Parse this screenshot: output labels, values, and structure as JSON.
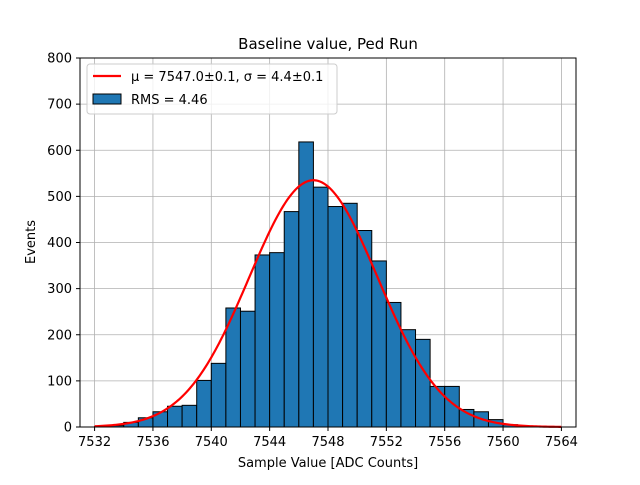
{
  "chart_data": {
    "type": "bar",
    "title": "Baseline value, Ped Run",
    "xlabel": "Sample Value [ADC Counts]",
    "ylabel": "Events",
    "xlim": [
      7531.0,
      7565.0
    ],
    "ylim": [
      0,
      800
    ],
    "xticks": [
      7532,
      7536,
      7540,
      7544,
      7548,
      7552,
      7556,
      7560,
      7564
    ],
    "yticks": [
      0,
      100,
      200,
      300,
      400,
      500,
      600,
      700,
      800
    ],
    "grid": true,
    "legend_position": "top-left",
    "histogram": {
      "name": "RMS = 4.46",
      "color": "#1f77b4",
      "edge_color": "#000000",
      "bins": [
        {
          "x0": 7532.0,
          "x1": 7533.0,
          "count": 1
        },
        {
          "x0": 7533.0,
          "x1": 7534.0,
          "count": 3
        },
        {
          "x0": 7534.0,
          "x1": 7535.0,
          "count": 10
        },
        {
          "x0": 7535.0,
          "x1": 7536.0,
          "count": 20
        },
        {
          "x0": 7536.0,
          "x1": 7537.0,
          "count": 33
        },
        {
          "x0": 7537.0,
          "x1": 7538.0,
          "count": 45
        },
        {
          "x0": 7538.0,
          "x1": 7539.0,
          "count": 47
        },
        {
          "x0": 7539.0,
          "x1": 7540.0,
          "count": 101
        },
        {
          "x0": 7540.0,
          "x1": 7541.0,
          "count": 138
        },
        {
          "x0": 7541.0,
          "x1": 7542.0,
          "count": 258
        },
        {
          "x0": 7542.0,
          "x1": 7543.0,
          "count": 251
        },
        {
          "x0": 7543.0,
          "x1": 7544.0,
          "count": 373
        },
        {
          "x0": 7544.0,
          "x1": 7545.0,
          "count": 378
        },
        {
          "x0": 7545.0,
          "x1": 7546.0,
          "count": 467
        },
        {
          "x0": 7546.0,
          "x1": 7547.0,
          "count": 618
        },
        {
          "x0": 7547.0,
          "x1": 7548.0,
          "count": 520
        },
        {
          "x0": 7548.0,
          "x1": 7549.0,
          "count": 478
        },
        {
          "x0": 7549.0,
          "x1": 7550.0,
          "count": 485
        },
        {
          "x0": 7550.0,
          "x1": 7551.0,
          "count": 426
        },
        {
          "x0": 7551.0,
          "x1": 7552.0,
          "count": 360
        },
        {
          "x0": 7552.0,
          "x1": 7553.0,
          "count": 270
        },
        {
          "x0": 7553.0,
          "x1": 7554.0,
          "count": 211
        },
        {
          "x0": 7554.0,
          "x1": 7555.0,
          "count": 190
        },
        {
          "x0": 7555.0,
          "x1": 7556.0,
          "count": 88
        },
        {
          "x0": 7556.0,
          "x1": 7557.0,
          "count": 88
        },
        {
          "x0": 7557.0,
          "x1": 7558.0,
          "count": 38
        },
        {
          "x0": 7558.0,
          "x1": 7559.0,
          "count": 33
        },
        {
          "x0": 7559.0,
          "x1": 7560.0,
          "count": 16
        },
        {
          "x0": 7560.0,
          "x1": 7561.0,
          "count": 5
        },
        {
          "x0": 7561.0,
          "x1": 7562.0,
          "count": 2
        },
        {
          "x0": 7562.0,
          "x1": 7563.0,
          "count": 1
        }
      ]
    },
    "fit": {
      "name": "μ = 7547.0±0.1, σ = 4.4±0.1",
      "color": "#ff0000",
      "mu": 7547.0,
      "sigma": 4.4,
      "amplitude": 535,
      "x_range": [
        7532,
        7564
      ]
    }
  }
}
